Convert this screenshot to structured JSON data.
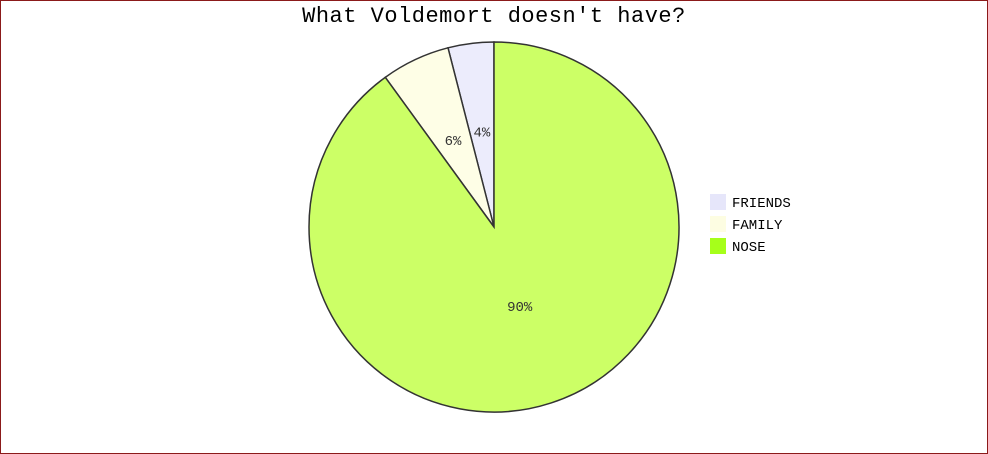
{
  "chart_data": {
    "type": "pie",
    "title": "What Voldemort doesn't have?",
    "slices": [
      {
        "label": "FRIENDS",
        "value": 4,
        "display": "4%",
        "color": "#ececfc",
        "legend_color": "#e6e6fa"
      },
      {
        "label": "FAMILY",
        "value": 6,
        "display": "6%",
        "color": "#fefee6",
        "legend_color": "#fdfde2"
      },
      {
        "label": "NOSE",
        "value": 90,
        "display": "90%",
        "color": "#ccff66",
        "legend_color": "#a6ff1a"
      }
    ],
    "legend_position": "right",
    "start_angle": "12 o'clock, counter-clockwise"
  }
}
